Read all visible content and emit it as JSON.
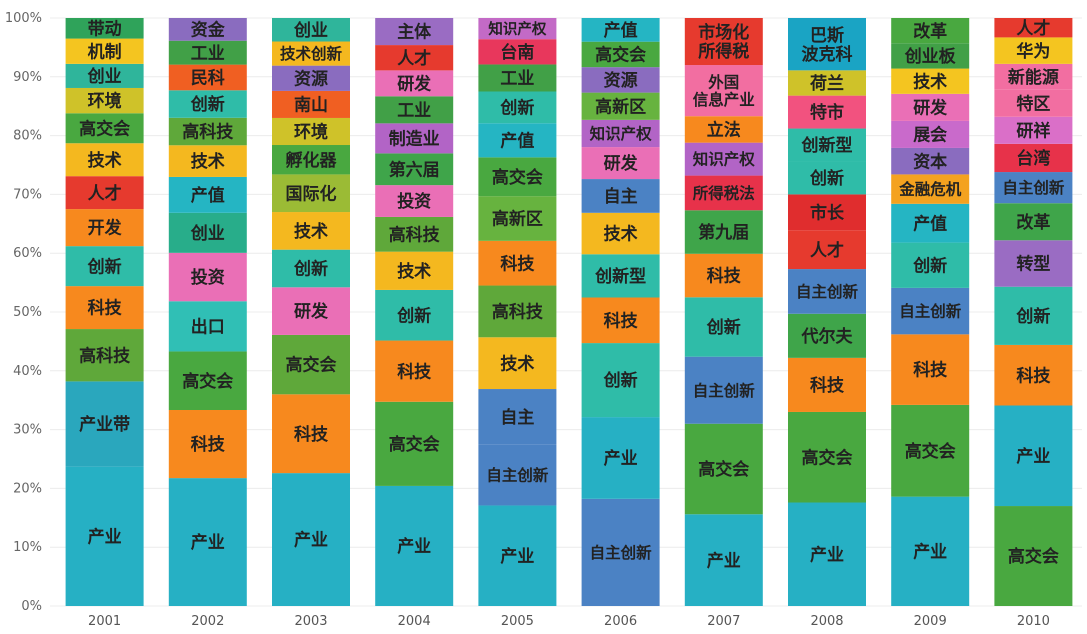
{
  "chart_data": {
    "type": "bar",
    "stacked": true,
    "normalized": true,
    "ylim": [
      0,
      100
    ],
    "y_ticks": [
      "0%",
      "10%",
      "20%",
      "30%",
      "40%",
      "50%",
      "60%",
      "70%",
      "80%",
      "90%",
      "100%"
    ],
    "categories": [
      "2001",
      "2002",
      "2003",
      "2004",
      "2005",
      "2006",
      "2007",
      "2008",
      "2009",
      "2010"
    ],
    "grid": true,
    "columns": [
      {
        "year": "2001",
        "segments": [
          {
            "label": "产业",
            "value": 23.7,
            "color": "#26b0c4"
          },
          {
            "label": "产业带",
            "value": 14.5,
            "color": "#2aa7bd"
          },
          {
            "label": "高科技",
            "value": 8.9,
            "color": "#5fa83a"
          },
          {
            "label": "科技",
            "value": 7.3,
            "color": "#f7891e"
          },
          {
            "label": "创新",
            "value": 6.8,
            "color": "#2fbca8"
          },
          {
            "label": "开发",
            "value": 6.3,
            "color": "#f7891e"
          },
          {
            "label": "人才",
            "value": 5.6,
            "color": "#e63a2e"
          },
          {
            "label": "技术",
            "value": 5.6,
            "color": "#f4b81f"
          },
          {
            "label": "高交会",
            "value": 5.1,
            "color": "#49a840"
          },
          {
            "label": "环境",
            "value": 4.3,
            "color": "#cfc229"
          },
          {
            "label": "创业",
            "value": 4.1,
            "color": "#2fb59b"
          },
          {
            "label": "机制",
            "value": 4.3,
            "color": "#f4c520"
          },
          {
            "label": "带动",
            "value": 3.5,
            "color": "#2fa35a"
          }
        ]
      },
      {
        "year": "2002",
        "segments": [
          {
            "label": "产业",
            "value": 21.4,
            "color": "#26b0c4"
          },
          {
            "label": "科技",
            "value": 11.4,
            "color": "#f7891e"
          },
          {
            "label": "高交会",
            "value": 9.8,
            "color": "#49a840"
          },
          {
            "label": "出口",
            "value": 8.4,
            "color": "#30bfb5"
          },
          {
            "label": "投资",
            "value": 8.1,
            "color": "#ea6fb6"
          },
          {
            "label": "创业",
            "value": 6.7,
            "color": "#28ad8a"
          },
          {
            "label": "产值",
            "value": 6.0,
            "color": "#25b5c3"
          },
          {
            "label": "技术",
            "value": 5.3,
            "color": "#f4b81f"
          },
          {
            "label": "高科技",
            "value": 4.6,
            "color": "#5fa83a"
          },
          {
            "label": "创新",
            "value": 4.6,
            "color": "#2fbca8"
          },
          {
            "label": "民科",
            "value": 4.3,
            "color": "#f05f22"
          },
          {
            "label": "工业",
            "value": 4.0,
            "color": "#41a047"
          },
          {
            "label": "资金",
            "value": 3.8,
            "color": "#8a6cbf"
          }
        ]
      },
      {
        "year": "2003",
        "segments": [
          {
            "label": "产业",
            "value": 22.6,
            "color": "#26b0c4"
          },
          {
            "label": "科技",
            "value": 13.4,
            "color": "#f7891e"
          },
          {
            "label": "高交会",
            "value": 10.1,
            "color": "#5fa83a"
          },
          {
            "label": "研发",
            "value": 8.1,
            "color": "#ea6fb6"
          },
          {
            "label": "创新",
            "value": 6.4,
            "color": "#2fbca8"
          },
          {
            "label": "技术",
            "value": 6.4,
            "color": "#f4b81f"
          },
          {
            "label": "国际化",
            "value": 6.4,
            "color": "#9bbb35"
          },
          {
            "label": "孵化器",
            "value": 5.0,
            "color": "#49a840"
          },
          {
            "label": "环境",
            "value": 4.6,
            "color": "#cfc229"
          },
          {
            "label": "南山",
            "value": 4.6,
            "color": "#f05f22"
          },
          {
            "label": "资源",
            "value": 4.3,
            "color": "#8a6cbf"
          },
          {
            "label": "技术创新",
            "value": 4.1,
            "color": "#f4b81f"
          },
          {
            "label": "创业",
            "value": 4.0,
            "color": "#2fb59b"
          }
        ]
      },
      {
        "year": "2004",
        "segments": [
          {
            "label": "产业",
            "value": 20.4,
            "color": "#26b0c4"
          },
          {
            "label": "高交会",
            "value": 14.3,
            "color": "#49a840"
          },
          {
            "label": "科技",
            "value": 10.4,
            "color": "#f7891e"
          },
          {
            "label": "创新",
            "value": 8.6,
            "color": "#2fbca8"
          },
          {
            "label": "技术",
            "value": 6.5,
            "color": "#f4b81f"
          },
          {
            "label": "高科技",
            "value": 5.9,
            "color": "#5fa83a"
          },
          {
            "label": "投资",
            "value": 5.4,
            "color": "#ea6fb6"
          },
          {
            "label": "第六届",
            "value": 5.4,
            "color": "#3fa54a"
          },
          {
            "label": "制造业",
            "value": 5.1,
            "color": "#b264c6"
          },
          {
            "label": "工业",
            "value": 4.6,
            "color": "#41a047"
          },
          {
            "label": "研发",
            "value": 4.4,
            "color": "#ea6fb6"
          },
          {
            "label": "人才",
            "value": 4.3,
            "color": "#e63a2e"
          },
          {
            "label": "主体",
            "value": 4.6,
            "color": "#9a6cc3"
          }
        ]
      },
      {
        "year": "2005",
        "segments": [
          {
            "label": "产业",
            "value": 17.1,
            "color": "#26b0c4"
          },
          {
            "label": "自主创新",
            "value": 10.4,
            "color": "#4b82c4"
          },
          {
            "label": "自主",
            "value": 9.4,
            "color": "#4b82c4"
          },
          {
            "label": "技术",
            "value": 8.8,
            "color": "#f4b81f"
          },
          {
            "label": "高科技",
            "value": 8.8,
            "color": "#5fa83a"
          },
          {
            "label": "科技",
            "value": 7.6,
            "color": "#f7891e"
          },
          {
            "label": "高新区",
            "value": 7.6,
            "color": "#67b33f"
          },
          {
            "label": "高交会",
            "value": 6.6,
            "color": "#49a840"
          },
          {
            "label": "产值",
            "value": 5.8,
            "color": "#25b5c3"
          },
          {
            "label": "创新",
            "value": 5.4,
            "color": "#2fbca8"
          },
          {
            "label": "工业",
            "value": 4.6,
            "color": "#41a047"
          },
          {
            "label": "台南",
            "value": 4.3,
            "color": "#e8375c"
          },
          {
            "label": "知识产权",
            "value": 3.6,
            "color": "#c36ac6"
          }
        ]
      },
      {
        "year": "2006",
        "segments": [
          {
            "label": "自主创新",
            "value": 18.1,
            "color": "#4b82c4"
          },
          {
            "label": "产业",
            "value": 13.8,
            "color": "#26b0c4"
          },
          {
            "label": "创新",
            "value": 12.5,
            "color": "#2fbca8"
          },
          {
            "label": "科技",
            "value": 7.7,
            "color": "#f7891e"
          },
          {
            "label": "创新型",
            "value": 7.3,
            "color": "#2fbca8"
          },
          {
            "label": "技术",
            "value": 7.0,
            "color": "#f4b81f"
          },
          {
            "label": "自主",
            "value": 5.7,
            "color": "#4b82c4"
          },
          {
            "label": "研发",
            "value": 5.4,
            "color": "#ea6fb6"
          },
          {
            "label": "知识产权",
            "value": 4.6,
            "color": "#b264c6"
          },
          {
            "label": "高新区",
            "value": 4.6,
            "color": "#67b33f"
          },
          {
            "label": "资源",
            "value": 4.3,
            "color": "#8a6cbf"
          },
          {
            "label": "高交会",
            "value": 4.3,
            "color": "#49a840"
          },
          {
            "label": "产值",
            "value": 4.0,
            "color": "#25b5c3"
          }
        ]
      },
      {
        "year": "2007",
        "segments": [
          {
            "label": "产业",
            "value": 15.6,
            "color": "#26b0c4"
          },
          {
            "label": "高交会",
            "value": 15.4,
            "color": "#49a840"
          },
          {
            "label": "自主创新",
            "value": 11.4,
            "color": "#4b82c4"
          },
          {
            "label": "创新",
            "value": 10.1,
            "color": "#2fbca8"
          },
          {
            "label": "科技",
            "value": 7.4,
            "color": "#f7891e"
          },
          {
            "label": "第九届",
            "value": 7.4,
            "color": "#3fa54a"
          },
          {
            "label": "所得税法",
            "value": 5.9,
            "color": "#e7324a"
          },
          {
            "label": "知识产权",
            "value": 5.6,
            "color": "#b264c6"
          },
          {
            "label": "立法",
            "value": 4.5,
            "color": "#f7891e"
          },
          {
            "label": "外国 信息产业",
            "value": 8.7,
            "color": "#f26ea1"
          },
          {
            "label": "市场化 所得税",
            "value": 8.0,
            "color": "#e63a2e"
          }
        ]
      },
      {
        "year": "2008",
        "segments": [
          {
            "label": "产业",
            "value": 17.6,
            "color": "#26b0c4"
          },
          {
            "label": "高交会",
            "value": 15.4,
            "color": "#49a840"
          },
          {
            "label": "科技",
            "value": 9.2,
            "color": "#f7891e"
          },
          {
            "label": "代尔夫",
            "value": 7.5,
            "color": "#3fa54a"
          },
          {
            "label": "自主创新",
            "value": 7.6,
            "color": "#4b82c4"
          },
          {
            "label": "人才",
            "value": 6.6,
            "color": "#e63a2e"
          },
          {
            "label": "市长",
            "value": 6.1,
            "color": "#e02d2e"
          },
          {
            "label": "创新",
            "value": 5.6,
            "color": "#2fbca8"
          },
          {
            "label": "创新型",
            "value": 5.6,
            "color": "#2fbca8"
          },
          {
            "label": "特市",
            "value": 5.6,
            "color": "#f2527f"
          },
          {
            "label": "荷兰",
            "value": 4.3,
            "color": "#cfc229"
          },
          {
            "label": "巴斯 波克科",
            "value": 8.9,
            "color": "#1aa4c4"
          }
        ]
      },
      {
        "year": "2009",
        "segments": [
          {
            "label": "产业",
            "value": 18.6,
            "color": "#26b0c4"
          },
          {
            "label": "高交会",
            "value": 15.6,
            "color": "#49a840"
          },
          {
            "label": "科技",
            "value": 12.0,
            "color": "#f7891e"
          },
          {
            "label": "自主创新",
            "value": 7.9,
            "color": "#4b82c4"
          },
          {
            "label": "创新",
            "value": 7.7,
            "color": "#2fbca8"
          },
          {
            "label": "产值",
            "value": 6.6,
            "color": "#25b5c3"
          },
          {
            "label": "金融危机",
            "value": 5.0,
            "color": "#f4a21f"
          },
          {
            "label": "资本",
            "value": 4.5,
            "color": "#8a6cbf"
          },
          {
            "label": "展会",
            "value": 4.6,
            "color": "#c96acb"
          },
          {
            "label": "研发",
            "value": 4.6,
            "color": "#ea6fb6"
          },
          {
            "label": "技术",
            "value": 4.3,
            "color": "#f4c520"
          },
          {
            "label": "创业板",
            "value": 4.3,
            "color": "#41a047"
          },
          {
            "label": "改革",
            "value": 4.3,
            "color": "#49a840"
          }
        ]
      },
      {
        "year": "2010",
        "segments": [
          {
            "label": "高交会",
            "value": 17.0,
            "color": "#49a840"
          },
          {
            "label": "产业",
            "value": 17.1,
            "color": "#26b0c4"
          },
          {
            "label": "科技",
            "value": 10.3,
            "color": "#f7891e"
          },
          {
            "label": "创新",
            "value": 9.9,
            "color": "#2fbca8"
          },
          {
            "label": "转型",
            "value": 7.9,
            "color": "#9a6cc3"
          },
          {
            "label": "改革",
            "value": 6.3,
            "color": "#3fa54a"
          },
          {
            "label": "自主创新",
            "value": 5.3,
            "color": "#4b82c4"
          },
          {
            "label": "台湾",
            "value": 4.8,
            "color": "#e7324a"
          },
          {
            "label": "研祥",
            "value": 4.6,
            "color": "#da6fc8"
          },
          {
            "label": "特区",
            "value": 4.6,
            "color": "#f26ea1"
          },
          {
            "label": "新能源",
            "value": 4.4,
            "color": "#f26ea1"
          },
          {
            "label": "华为",
            "value": 4.5,
            "color": "#f4c520"
          },
          {
            "label": "人才",
            "value": 3.3,
            "color": "#e63a2e"
          }
        ]
      }
    ]
  }
}
